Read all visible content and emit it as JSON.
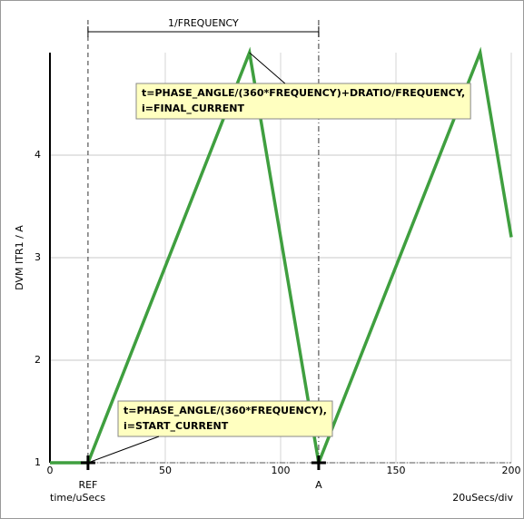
{
  "chart_data": {
    "type": "line",
    "y_label": "DVM ITR1 / A",
    "x_label": "time/uSecs",
    "scale_label": "20uSecs/div",
    "x": [
      0,
      16.5,
      86.5,
      116.5,
      186.5,
      200
    ],
    "series": [
      {
        "color": "#3f9f3f",
        "values": [
          1,
          1,
          5,
          1,
          5,
          3.2
        ]
      }
    ],
    "xlim": [
      0,
      200
    ],
    "ylim": [
      1,
      5
    ],
    "xticks": [
      0,
      50,
      100,
      150,
      200
    ],
    "yticks": [
      1,
      2,
      3,
      4
    ],
    "grid": true,
    "markers": [
      {
        "label": "REF",
        "x": 16.5
      },
      {
        "label": "A",
        "x": 116.5
      }
    ],
    "dimension_label": "1/FREQUENCY",
    "annotations": [
      {
        "lines": [
          "t=PHASE_ANGLE/(360*FREQUENCY)+DRATIO/FREQUENCY,",
          "i=FINAL_CURRENT"
        ],
        "x": 86.5,
        "y": 5
      },
      {
        "lines": [
          "t=PHASE_ANGLE/(360*FREQUENCY),",
          "i=START_CURRENT"
        ],
        "x": 16.5,
        "y": 1
      }
    ]
  }
}
